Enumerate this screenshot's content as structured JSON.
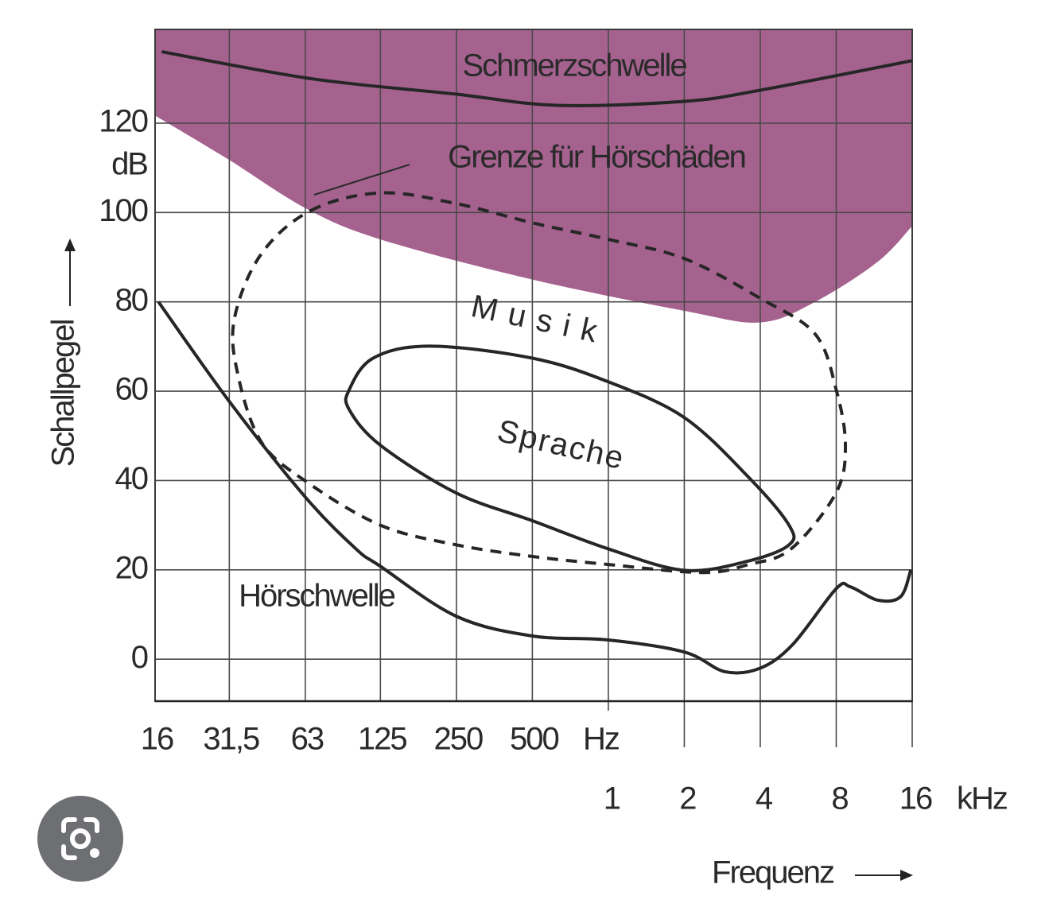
{
  "chart_data": {
    "type": "line",
    "x_label": "Frequenz",
    "y_label": "Schallpegel",
    "y_unit": "dB",
    "x_unit_hz": "Hz",
    "x_unit_khz": "kHz",
    "log_x": true,
    "grid": true,
    "xlim": [
      16,
      16000
    ],
    "ylim": [
      -9.4,
      141
    ],
    "yticks": [
      0,
      20,
      40,
      60,
      80,
      100,
      120
    ],
    "xticks_hz": [
      16,
      {
        "value": 31.5,
        "label": "31,5"
      },
      63,
      125,
      250,
      500
    ],
    "xticks_khz": [
      {
        "value": 1000,
        "label": "1"
      },
      {
        "value": 2000,
        "label": "2"
      },
      {
        "value": 4000,
        "label": "4"
      },
      {
        "value": 8000,
        "label": "8"
      },
      {
        "value": 16000,
        "label": "16"
      }
    ],
    "series": [
      {
        "name": "Grenze für Hörschäden",
        "color": "#a5628f",
        "fill_above": true,
        "x": [
          16,
          31,
          63,
          125,
          500,
          2000,
          4000,
          6600,
          11700,
          16000
        ],
        "values": [
          121.7,
          112,
          101,
          94,
          85,
          78,
          75.4,
          80,
          89,
          97
        ]
      },
      {
        "name": "Schmerzschwelle",
        "color": "#262626",
        "x": [
          17,
          66,
          250,
          626,
          2000,
          4000,
          16000
        ],
        "values": [
          136,
          130,
          126.5,
          124,
          124.9,
          127.4,
          134
        ]
      },
      {
        "name": "Musik",
        "color": "#262626",
        "dashed": true,
        "closed": true,
        "x": [
          66,
          125,
          250,
          500,
          1000,
          2000,
          4000,
          6600,
          8000,
          8700,
          7980,
          5300,
          3600,
          2360,
          1000,
          500,
          250,
          125,
          63,
          42,
          34,
          33,
          42
        ],
        "values": [
          100.4,
          104.4,
          102,
          97.7,
          94,
          89.7,
          80.8,
          72.8,
          60.3,
          47.9,
          37.2,
          24.7,
          21.2,
          19.4,
          21.2,
          23,
          25.6,
          30,
          39.9,
          48.8,
          63.9,
          76.3,
          90.6
        ]
      },
      {
        "name": "Sprache",
        "color": "#262626",
        "closed": true,
        "x": [
          94,
          117,
          196,
          500,
          1000,
          2000,
          3600,
          5200,
          5200,
          3600,
          2000,
          1000,
          500,
          250,
          125,
          94
        ],
        "values": [
          60.3,
          67.4,
          70.1,
          67.4,
          62.1,
          54.1,
          40.7,
          30,
          25.6,
          22,
          19.9,
          24.7,
          31,
          37.2,
          47.9,
          55.9
        ]
      },
      {
        "name": "Hörschwelle",
        "color": "#262626",
        "x": [
          16.5,
          31.5,
          63,
          100,
          125,
          250,
          500,
          1000,
          2000,
          2900,
          4000,
          5400,
          8000,
          9100,
          11700,
          14400,
          15800
        ],
        "values": [
          80,
          57.7,
          36.3,
          24.7,
          20.8,
          9.6,
          5.2,
          4.3,
          1.6,
          -2.8,
          -2,
          3.4,
          15.8,
          16.2,
          13.2,
          14,
          20
        ]
      }
    ]
  }
}
